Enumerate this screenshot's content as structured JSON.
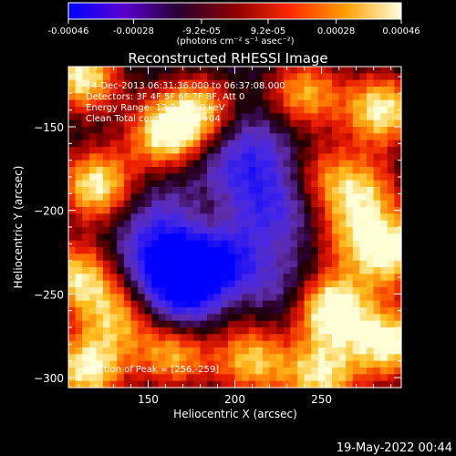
{
  "colorbar": {
    "ticks": [
      -0.00046,
      -0.00028,
      -9.2e-05,
      9.2e-05,
      0.00028,
      0.00046
    ],
    "tick_labels": [
      "-0.00046",
      "-0.00028",
      "-9.2e-05",
      "9.2e-05",
      "0.00028",
      "0.00046"
    ],
    "unit_label": "(photons cm⁻² s⁻¹ asec⁻²)",
    "range": [
      -0.00046,
      0.00046
    ],
    "colors": [
      "#0000ff",
      "#5a00d0",
      "#2a0030",
      "#8a0000",
      "#ff2a00",
      "#ffa000",
      "#ffffe0"
    ]
  },
  "chart_data": {
    "type": "heatmap",
    "title": "Reconstructed RHESSI Image",
    "xlabel": "Heliocentric X (arcsec)",
    "ylabel": "Heliocentric Y (arcsec)",
    "xlim": [
      104,
      296
    ],
    "ylim": [
      -306,
      -114
    ],
    "x_ticks": [
      150,
      200,
      250
    ],
    "y_ticks": [
      -150,
      -200,
      -250,
      -300
    ],
    "x_tick_labels": [
      "150",
      "200",
      "250"
    ],
    "y_tick_labels": [
      "−150",
      "−200",
      "−250",
      "−300"
    ],
    "grid": false,
    "annotations": [
      "14-Dec-2013 06:31:36.000 to 06:37:08.000",
      "Detectors: 3F 4F 5F 6F 7F 8F, Att 0",
      "Energy Range: 12.0 - 25.0 keV",
      "Clean     Total counts: 1.03E+04"
    ],
    "peak_label": "Position of Peak = [256,-259]",
    "peak": [
      256,
      -259
    ],
    "sources": [
      {
        "x": 112,
        "y": -120,
        "amp": 1.0
      },
      {
        "x": 120,
        "y": -185,
        "amp": 1.0
      },
      {
        "x": 160,
        "y": -155,
        "amp": 0.95
      },
      {
        "x": 180,
        "y": -140,
        "amp": 0.8
      },
      {
        "x": 240,
        "y": -130,
        "amp": 0.8
      },
      {
        "x": 285,
        "y": -140,
        "amp": 1.0
      },
      {
        "x": 290,
        "y": -225,
        "amp": 1.0
      },
      {
        "x": 256,
        "y": -259,
        "amp": 1.15
      },
      {
        "x": 290,
        "y": -280,
        "amp": 1.0
      },
      {
        "x": 250,
        "y": -300,
        "amp": 0.9
      },
      {
        "x": 210,
        "y": -290,
        "amp": 0.85
      },
      {
        "x": 165,
        "y": -285,
        "amp": 0.9
      },
      {
        "x": 115,
        "y": -295,
        "amp": 1.0
      },
      {
        "x": 135,
        "y": -262,
        "amp": 0.85
      },
      {
        "x": 110,
        "y": -240,
        "amp": 0.9
      },
      {
        "x": 185,
        "y": -205,
        "amp": 0.65
      },
      {
        "x": 275,
        "y": -190,
        "amp": 0.7
      },
      {
        "x": 250,
        "y": -180,
        "amp": 0.6
      },
      {
        "x": 260,
        "y": -215,
        "amp": 0.55
      },
      {
        "x": 200,
        "y": -255,
        "amp": 0.55
      },
      {
        "x": 220,
        "y": -225,
        "amp": 0.5
      }
    ],
    "negatives": [
      {
        "x": 205,
        "y": -170,
        "amp": 0.9
      },
      {
        "x": 170,
        "y": -215,
        "amp": 1.0
      },
      {
        "x": 160,
        "y": -250,
        "amp": 1.0
      },
      {
        "x": 215,
        "y": -240,
        "amp": 0.9
      },
      {
        "x": 230,
        "y": -205,
        "amp": 0.85
      },
      {
        "x": 175,
        "y": -245,
        "amp": 0.8
      },
      {
        "x": 195,
        "y": -230,
        "amp": 0.8
      }
    ]
  },
  "footer": {
    "timestamp": "19-May-2022 00:44"
  }
}
